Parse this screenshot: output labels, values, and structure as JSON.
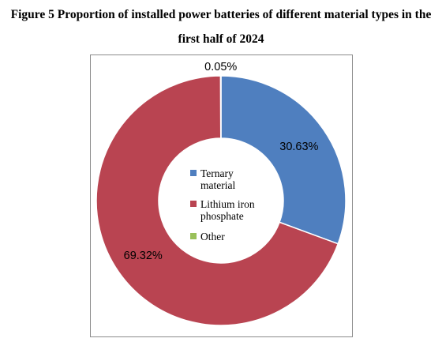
{
  "title": {
    "line1": "Figure 5 Proportion of installed power batteries of different material types in the",
    "line2": "first half of 2024"
  },
  "chart_data": {
    "type": "pie",
    "variant": "donut",
    "title": "Figure 5 Proportion of installed power batteries of different material types in the first half of 2024",
    "slices": [
      {
        "name": "Ternary material",
        "value": 30.63,
        "label": "30.63%",
        "color": "#4f7fbf",
        "legend_lines": [
          "Ternary",
          "material"
        ]
      },
      {
        "name": "Lithium iron phosphate",
        "value": 69.32,
        "label": "69.32%",
        "color": "#b94451",
        "legend_lines": [
          "Lithium iron",
          "phosphate"
        ]
      },
      {
        "name": "Other",
        "value": 0.05,
        "label": "0.05%",
        "color": "#99c05a",
        "legend_lines": [
          "Other"
        ]
      }
    ],
    "legend_position": "center"
  }
}
